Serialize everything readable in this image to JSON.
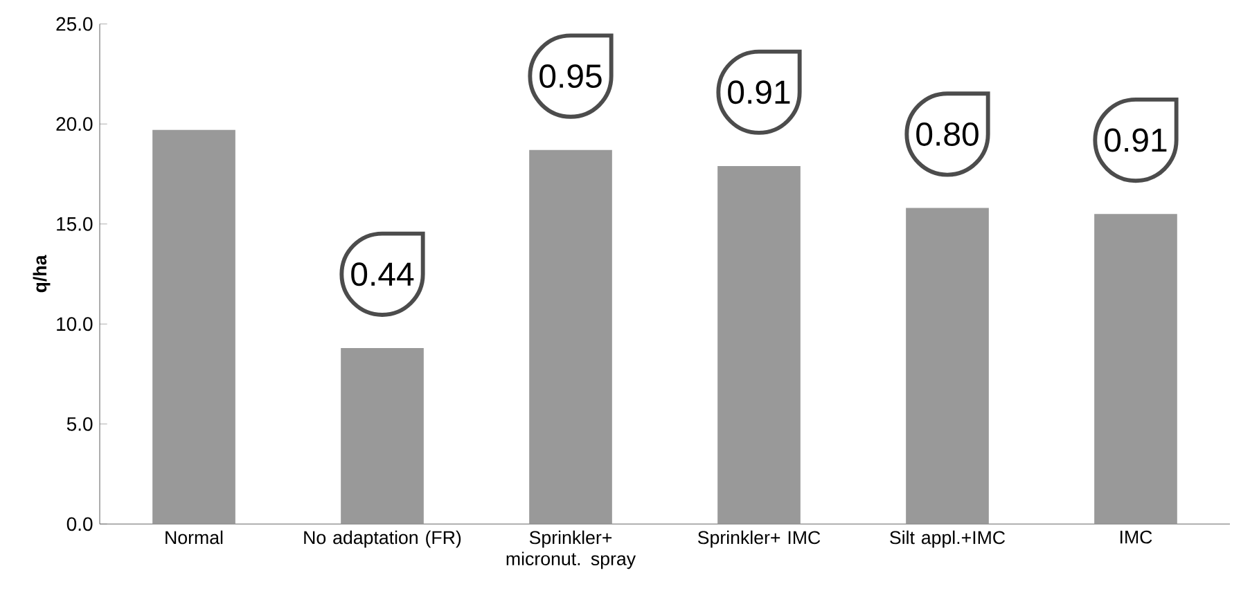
{
  "chart_data": {
    "type": "bar",
    "ylabel": "q/ha",
    "categories": [
      "Normal",
      "No adaptation (FR)",
      "Sprinkler+ micronut. spray",
      "Sprinkler+ IMC",
      "Silt appl.+IMC",
      "IMC"
    ],
    "values": [
      19.7,
      8.8,
      18.7,
      17.9,
      15.8,
      15.5
    ],
    "color": "#999999",
    "ylim": [
      0,
      25
    ],
    "yticks": [
      {
        "value": 0,
        "label": "0.0"
      },
      {
        "value": 5,
        "label": "5.0"
      },
      {
        "value": 10,
        "label": "10.0"
      },
      {
        "value": 15,
        "label": "15.0"
      },
      {
        "value": 20,
        "label": "20.0"
      },
      {
        "value": 25,
        "label": "25.0"
      }
    ],
    "grid": false,
    "annotations": [
      {
        "text": "0.44",
        "x": "No adaptation (FR)",
        "y": 8.8
      },
      {
        "text": "0.95",
        "x": "Sprinkler+ micronut. spray",
        "y": 18.7
      },
      {
        "text": "0.91",
        "x": "Sprinkler+ IMC",
        "y": 17.9
      },
      {
        "text": "0.80",
        "x": "Silt appl.+IMC",
        "y": 15.8
      },
      {
        "text": "0.91",
        "x": "IMC",
        "y": 15.5
      }
    ]
  }
}
